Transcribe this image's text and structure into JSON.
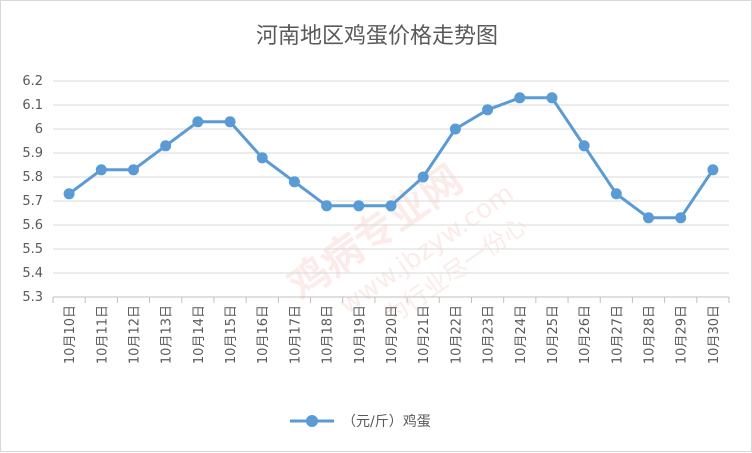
{
  "chart_data": {
    "type": "line",
    "title": "河南地区鸡蛋价格走势图",
    "categories": [
      "10月10日",
      "10月11日",
      "10月12日",
      "10月13日",
      "10月14日",
      "10月15日",
      "10月16日",
      "10月17日",
      "10月18日",
      "10月19日",
      "10月20日",
      "10月21日",
      "10月22日",
      "10月23日",
      "10月24日",
      "10月25日",
      "10月26日",
      "10月27日",
      "10月28日",
      "10月29日",
      "10月30日"
    ],
    "series": [
      {
        "name": "（元/斤）鸡蛋",
        "color": "#5b9bd5",
        "values": [
          5.73,
          5.83,
          5.83,
          5.93,
          6.03,
          6.03,
          5.88,
          5.78,
          5.68,
          5.68,
          5.68,
          5.8,
          6.0,
          6.08,
          6.13,
          6.13,
          5.93,
          5.73,
          5.63,
          5.63,
          5.83
        ]
      }
    ],
    "yticks": [
      "5.3",
      "5.4",
      "5.5",
      "5.6",
      "5.7",
      "5.8",
      "5.9",
      "6",
      "6.1",
      "6.2"
    ],
    "ylim": [
      5.3,
      6.2
    ],
    "grid": true,
    "legend_position": "bottom"
  },
  "watermark": {
    "line1": "鸡病专业网",
    "line2": "www.jbzyw.com",
    "line3": "为行业尽一份心"
  }
}
